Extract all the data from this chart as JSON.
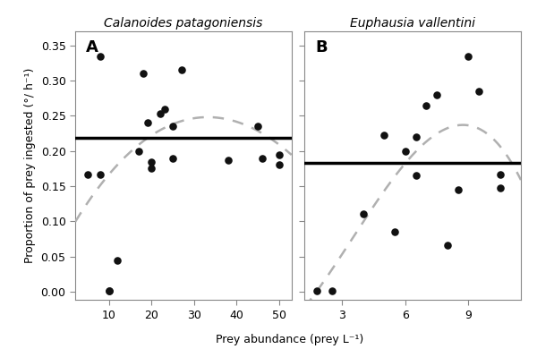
{
  "panel_A": {
    "title": "Calanoides patagoniensis",
    "label": "A",
    "x": [
      5,
      8,
      8,
      10,
      10,
      12,
      17,
      18,
      19,
      20,
      20,
      22,
      23,
      25,
      25,
      27,
      38,
      45,
      46,
      50,
      50
    ],
    "y": [
      0.167,
      0.335,
      0.167,
      0.001,
      0.001,
      0.044,
      0.2,
      0.31,
      0.24,
      0.175,
      0.185,
      0.253,
      0.26,
      0.235,
      0.19,
      0.315,
      0.187,
      0.235,
      0.19,
      0.18,
      0.195
    ],
    "mean_line": 0.219,
    "curve_pts_x": [
      5,
      10,
      15,
      20,
      25,
      30,
      35,
      40,
      45,
      50,
      53
    ],
    "curve_pts_y": [
      0.13,
      0.163,
      0.197,
      0.222,
      0.243,
      0.248,
      0.246,
      0.24,
      0.228,
      0.21,
      0.195
    ],
    "xlim": [
      2,
      53
    ],
    "xticks": [
      10,
      20,
      30,
      40,
      50
    ]
  },
  "panel_B": {
    "title": "Euphausia vallentini",
    "label": "B",
    "x": [
      1.8,
      2.5,
      4.0,
      5.0,
      5.5,
      6.0,
      6.5,
      6.5,
      7.0,
      7.5,
      8.0,
      8.5,
      9.0,
      9.5,
      10.5,
      10.5
    ],
    "y": [
      0.001,
      0.001,
      0.11,
      0.222,
      0.085,
      0.2,
      0.165,
      0.22,
      0.265,
      0.28,
      0.066,
      0.145,
      0.335,
      0.285,
      0.167,
      0.148
    ],
    "mean_line": 0.183,
    "curve_pts_x": [
      1.5,
      2.0,
      3.0,
      4.0,
      5.0,
      6.0,
      6.5,
      7.0,
      7.5,
      8.0,
      9.0,
      10.0,
      11.0,
      11.5
    ],
    "curve_pts_y": [
      0.001,
      0.01,
      0.04,
      0.085,
      0.135,
      0.185,
      0.215,
      0.235,
      0.24,
      0.235,
      0.215,
      0.195,
      0.183,
      0.178
    ],
    "xlim": [
      1.2,
      11.5
    ],
    "xticks": [
      3,
      6,
      9
    ]
  },
  "ylim": [
    -0.012,
    0.37
  ],
  "yticks": [
    0.0,
    0.05,
    0.1,
    0.15,
    0.2,
    0.25,
    0.3,
    0.35
  ],
  "ylabel": "Proportion of prey ingested (°/ h⁻¹)",
  "xlabel": "Prey abundance (prey L⁻¹)",
  "dot_color": "#111111",
  "dot_size": 38,
  "line_color": "#000000",
  "curve_color": "#b0b0b0",
  "background_color": "#ffffff"
}
